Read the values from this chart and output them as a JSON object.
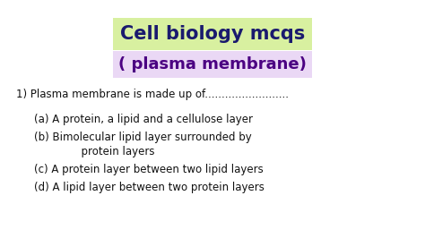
{
  "title1": "Cell biology mcqs",
  "title2": "( plasma membrane)",
  "title1_bg": "#d8f0a0",
  "title2_bg": "#ead8f5",
  "title1_color": "#1a1a6e",
  "title2_color": "#4b0082",
  "question": "1) Plasma membrane is made up of.........................",
  "options_line1": "(a) A protein, a lipid and a cellulose layer",
  "options_line2a": "(b) Bimolecular lipid layer surrounded by",
  "options_line2b": "              protein layers",
  "options_line3": "(c) A protein layer between two lipid layers",
  "options_line4": "(d) A lipid layer between two protein layers",
  "question_color": "#111111",
  "option_color": "#111111",
  "bg_color": "#ffffff",
  "question_fontsize": 8.5,
  "option_fontsize": 8.5,
  "title1_fontsize": 15,
  "title2_fontsize": 13
}
